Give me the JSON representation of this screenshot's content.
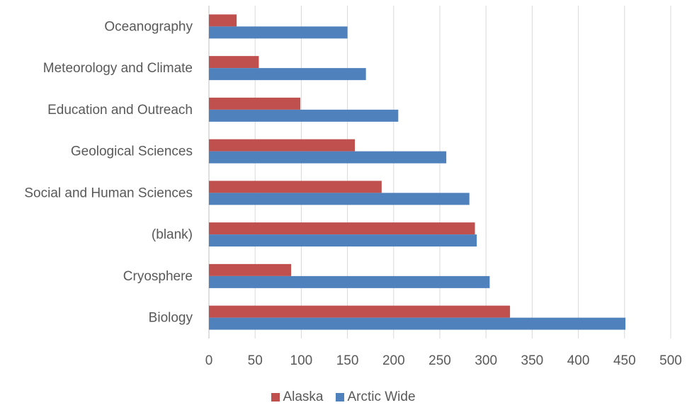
{
  "chart_data": {
    "type": "bar",
    "orientation": "horizontal",
    "categories": [
      "Biology",
      "Cryosphere",
      "(blank)",
      "Social and Human Sciences",
      "Geological Sciences",
      "Education and Outreach",
      "Meteorology and Climate",
      "Oceanography"
    ],
    "series": [
      {
        "name": "Alaska",
        "color": "#C0504D",
        "values": [
          326,
          89,
          288,
          187,
          158,
          99,
          54,
          30
        ]
      },
      {
        "name": "Arctic Wide",
        "color": "#4F81BD",
        "values": [
          451,
          304,
          290,
          282,
          257,
          205,
          170,
          150
        ]
      }
    ],
    "xlim": [
      0,
      500
    ],
    "xticks": [
      0,
      50,
      100,
      150,
      200,
      250,
      300,
      350,
      400,
      450,
      500
    ],
    "xtick_labels": [
      "0",
      "50",
      "100",
      "150",
      "200",
      "250",
      "300",
      "350",
      "400",
      "450",
      "500"
    ],
    "title": "",
    "xlabel": "",
    "ylabel": "",
    "grid": "vertical",
    "legend_position": "bottom"
  },
  "legend": {
    "alaska_label": "Alaska",
    "arctic_label": "Arctic Wide",
    "alaska_color": "#C0504D",
    "arctic_color": "#4F81BD"
  }
}
